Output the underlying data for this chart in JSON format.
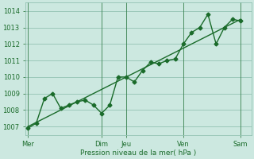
{
  "title": "",
  "xlabel": "Pression niveau de la mer( hPa )",
  "ylabel": "",
  "background_color": "#cce8e0",
  "plot_bg_color": "#cce8e0",
  "grid_color": "#88bbaa",
  "line_color": "#1a6b2a",
  "vline_color": "#1a6b2a",
  "ylim": [
    1006.5,
    1014.5
  ],
  "xlim": [
    -0.3,
    27.3
  ],
  "day_labels": [
    "Mer",
    "Dim",
    "Jeu",
    "Ven",
    "Sam"
  ],
  "day_positions": [
    0,
    9,
    12,
    19,
    26
  ],
  "series1_x": [
    0,
    1,
    2,
    3,
    4,
    5,
    6,
    7,
    8,
    9,
    10,
    11,
    12,
    13,
    14,
    15,
    16,
    17,
    18,
    19,
    20,
    21,
    22,
    23,
    24,
    25,
    26
  ],
  "series1_y": [
    1006.9,
    1007.2,
    1008.7,
    1009.0,
    1008.1,
    1008.3,
    1008.5,
    1008.6,
    1008.3,
    1007.8,
    1008.3,
    1010.0,
    1010.0,
    1009.7,
    1010.4,
    1010.9,
    1010.8,
    1011.0,
    1011.1,
    1012.0,
    1012.7,
    1013.0,
    1013.8,
    1012.0,
    1013.0,
    1013.5,
    1013.4
  ],
  "series2_x": [
    0,
    26
  ],
  "series2_y": [
    1007.0,
    1013.5
  ],
  "yticks": [
    1007,
    1008,
    1009,
    1010,
    1011,
    1012,
    1013,
    1014
  ],
  "marker": "D",
  "marker_size": 2.5,
  "line_width": 1.0,
  "tick_fontsize": 6.0,
  "xlabel_fontsize": 6.5
}
